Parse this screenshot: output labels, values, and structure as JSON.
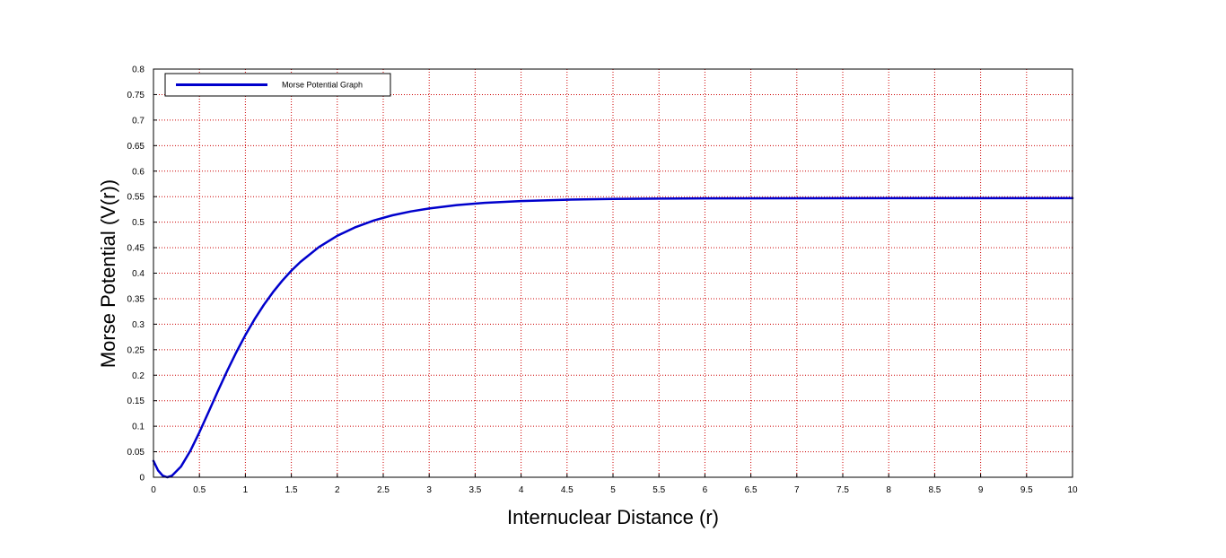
{
  "chart_data": {
    "type": "line",
    "title": "",
    "xlabel": "Internuclear Distance (r)",
    "ylabel": "Morse Potential (V(r))",
    "xlim": [
      0,
      10
    ],
    "ylim": [
      0,
      0.8
    ],
    "x_ticks": [
      "0",
      "0.5",
      "1",
      "1.5",
      "2",
      "2.5",
      "3",
      "3.5",
      "4",
      "4.5",
      "5",
      "5.5",
      "6",
      "6.5",
      "7",
      "7.5",
      "8",
      "8.5",
      "9",
      "9.5",
      "10"
    ],
    "y_ticks": [
      "0",
      "0.05",
      "0.1",
      "0.15",
      "0.2",
      "0.25",
      "0.3",
      "0.35",
      "0.4",
      "0.45",
      "0.5",
      "0.55",
      "0.6",
      "0.65",
      "0.7",
      "0.75",
      "0.8"
    ],
    "grid": true,
    "grid_color": "#cc0000",
    "legend_position": "top-left",
    "series": [
      {
        "name": "Morse Potential Graph",
        "color": "#0000cc",
        "x": [
          0,
          0.05,
          0.1,
          0.15,
          0.2,
          0.3,
          0.4,
          0.5,
          0.6,
          0.7,
          0.8,
          0.9,
          1.0,
          1.1,
          1.2,
          1.3,
          1.4,
          1.5,
          1.6,
          1.8,
          2.0,
          2.2,
          2.4,
          2.6,
          2.8,
          3.0,
          3.3,
          3.6,
          4.0,
          4.5,
          5.0,
          5.5,
          6.0,
          7.0,
          8.0,
          9.0,
          10.0
        ],
        "y": [
          0.032,
          0.0134,
          0.0031,
          0.0,
          0.0029,
          0.0212,
          0.0514,
          0.0883,
          0.1282,
          0.1686,
          0.2077,
          0.2446,
          0.2786,
          0.3097,
          0.3377,
          0.3627,
          0.385,
          0.4048,
          0.4222,
          0.4511,
          0.4733,
          0.4903,
          0.5034,
          0.5134,
          0.521,
          0.5268,
          0.5334,
          0.5377,
          0.5414,
          0.544,
          0.5454,
          0.5462,
          0.5466,
          0.5469,
          0.547,
          0.5471,
          0.5471
        ]
      }
    ]
  }
}
